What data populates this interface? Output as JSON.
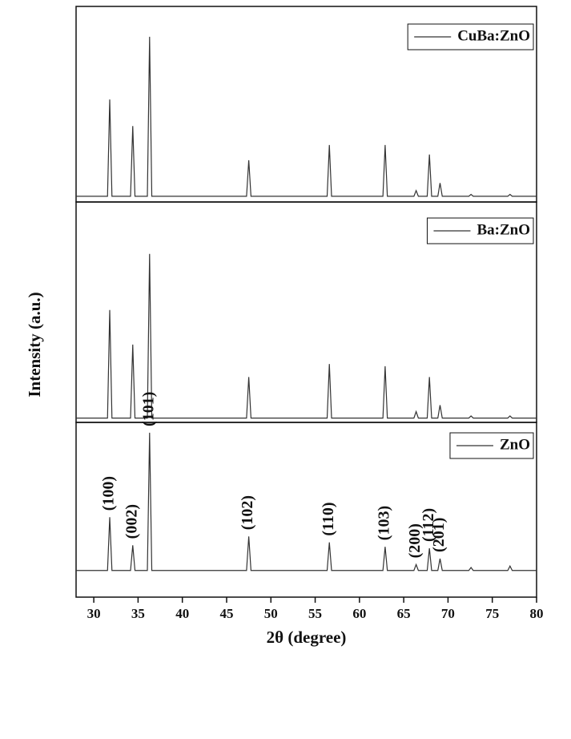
{
  "chart_data": [
    {
      "type": "line",
      "xlim": [
        28,
        80
      ],
      "ylim": [
        -3,
        100
      ],
      "x": [
        28,
        31.55,
        31.8,
        32.05,
        34.15,
        34.4,
        34.65,
        36.05,
        36.3,
        36.55,
        47.25,
        47.5,
        47.75,
        56.35,
        56.6,
        56.85,
        62.65,
        62.9,
        63.15,
        66.15,
        66.4,
        66.65,
        67.65,
        67.9,
        68.15,
        68.85,
        69.1,
        69.35,
        72.35,
        72.6,
        72.85,
        76.75,
        77.0,
        77.25,
        80
      ],
      "series": [
        {
          "name": "CuBa:ZnO",
          "color": "#333333",
          "values": [
            0,
            0,
            51,
            0,
            0,
            37,
            0,
            0,
            84,
            0,
            0,
            19,
            0,
            0,
            27,
            0,
            0,
            27,
            0,
            0,
            3,
            0,
            0,
            22,
            0,
            0,
            7,
            0,
            0,
            1,
            0,
            0,
            1,
            0,
            0
          ]
        }
      ]
    },
    {
      "type": "line",
      "xlim": [
        28,
        80
      ],
      "ylim": [
        -2,
        100
      ],
      "ylabel": "Intensity (a.u.)",
      "x": [
        28,
        31.55,
        31.8,
        32.05,
        34.15,
        34.4,
        34.65,
        36.05,
        36.3,
        36.55,
        47.25,
        47.5,
        47.75,
        56.35,
        56.6,
        56.85,
        62.65,
        62.9,
        63.15,
        66.15,
        66.4,
        66.65,
        67.65,
        67.9,
        68.15,
        68.85,
        69.1,
        69.35,
        72.35,
        72.6,
        72.85,
        76.75,
        77.0,
        77.25,
        80
      ],
      "series": [
        {
          "name": "Ba:ZnO",
          "color": "#333333",
          "values": [
            0,
            0,
            50,
            0,
            0,
            34,
            0,
            0,
            76,
            0,
            0,
            19,
            0,
            0,
            25,
            0,
            0,
            24,
            0,
            0,
            3,
            0,
            0,
            19,
            0,
            0,
            6,
            0,
            0,
            1,
            0,
            0,
            1,
            0,
            0
          ]
        }
      ]
    },
    {
      "type": "line",
      "xlim": [
        28,
        80
      ],
      "ylim": [
        -18,
        100
      ],
      "xlabel": "2θ (degree)",
      "xticks": [
        30,
        35,
        40,
        45,
        50,
        55,
        60,
        65,
        70,
        75,
        80
      ],
      "x": [
        28,
        31.55,
        31.8,
        32.05,
        34.15,
        34.4,
        34.65,
        36.05,
        36.3,
        36.55,
        47.25,
        47.5,
        47.75,
        56.35,
        56.6,
        56.85,
        62.65,
        62.9,
        63.15,
        66.15,
        66.4,
        66.65,
        67.65,
        67.9,
        68.15,
        68.85,
        69.1,
        69.35,
        72.35,
        72.6,
        72.85,
        76.75,
        77.0,
        77.25,
        80
      ],
      "series": [
        {
          "name": "ZnO",
          "color": "#333333",
          "values": [
            0,
            0,
            36,
            0,
            0,
            17,
            0,
            0,
            93,
            0,
            0,
            23,
            0,
            0,
            19,
            0,
            0,
            16,
            0,
            0,
            4,
            0,
            0,
            15,
            0,
            0,
            8,
            0,
            0,
            2,
            0,
            0,
            3,
            0,
            0
          ]
        }
      ],
      "annotations": [
        {
          "text": "(100)",
          "x": 31.8,
          "y": 36
        },
        {
          "text": "(002)",
          "x": 34.4,
          "y": 17
        },
        {
          "text": "(101)",
          "x": 36.3,
          "y": 93
        },
        {
          "text": "(102)",
          "x": 47.5,
          "y": 23
        },
        {
          "text": "(110)",
          "x": 56.6,
          "y": 19
        },
        {
          "text": "(103)",
          "x": 62.9,
          "y": 16
        },
        {
          "text": "(200)",
          "x": 66.4,
          "y": 4
        },
        {
          "text": "(112)",
          "x": 67.9,
          "y": 15
        },
        {
          "text": "(201)",
          "x": 69.1,
          "y": 8
        }
      ]
    }
  ]
}
